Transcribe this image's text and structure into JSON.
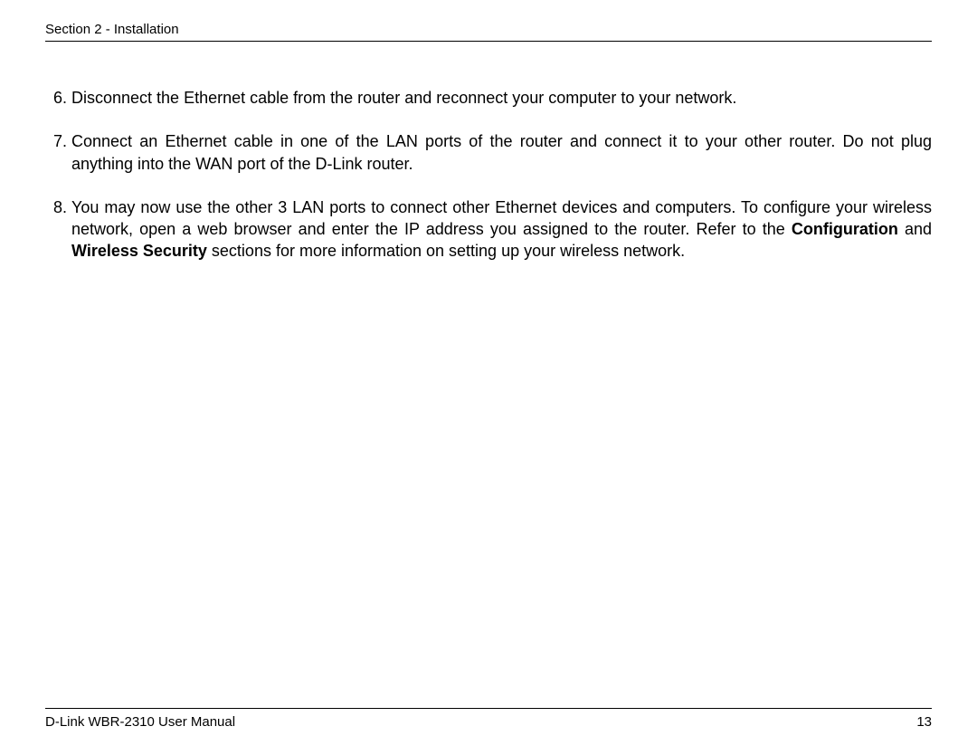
{
  "header": {
    "section_label": "Section 2 - Installation"
  },
  "steps": [
    {
      "num": "6.",
      "segments": [
        {
          "text": "Disconnect the Ethernet cable from the router and reconnect your computer to your network.",
          "bold": false
        }
      ]
    },
    {
      "num": "7.",
      "segments": [
        {
          "text": "Connect an Ethernet cable in one of the LAN ports of the router and connect it to your other router. Do not plug anything into the WAN port of the D-Link router.",
          "bold": false
        }
      ]
    },
    {
      "num": "8.",
      "segments": [
        {
          "text": "You may now use the other 3 LAN ports to connect other Ethernet devices and computers. To configure your wireless network, open a web browser and enter the IP address you assigned to the router. Refer to the ",
          "bold": false
        },
        {
          "text": "Configuration",
          "bold": true
        },
        {
          "text": " and ",
          "bold": false
        },
        {
          "text": "Wireless Security",
          "bold": true
        },
        {
          "text": " sections for more information on setting up your wireless network.",
          "bold": false
        }
      ]
    }
  ],
  "footer": {
    "manual_label": "D-Link WBR-2310 User Manual",
    "page_number": "13"
  }
}
